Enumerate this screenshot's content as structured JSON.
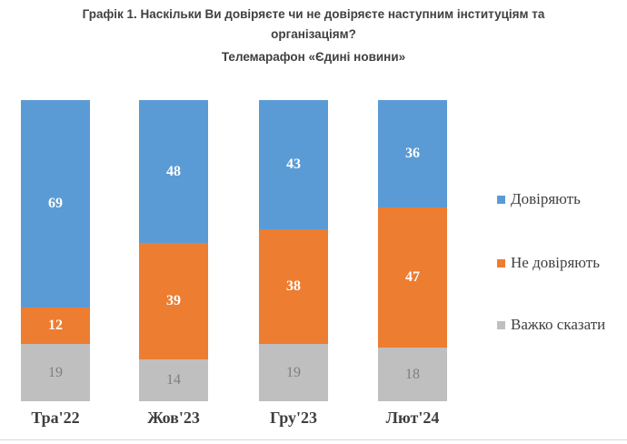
{
  "title": {
    "line1": "Графік 1. Наскільки Ви довіряєте чи не довіряєте наступним інституціям та",
    "line2": "організаціям?",
    "subtitle": "Телемарафон «Єдині новини»"
  },
  "colors": {
    "trust": "#5B9BD5",
    "distrust": "#ED7D31",
    "hard_to_say": "#BFBFBF",
    "title_text": "#404040",
    "category_text": "#3F3F3F",
    "gray_value_text": "#7F7F7F",
    "white_value_text": "#FFFFFF",
    "divider": "#D9D9D9"
  },
  "chart_data": {
    "type": "bar",
    "subtype": "stacked-column-100",
    "title": "Графік 1. Наскільки Ви довіряєте чи не довіряєте наступним інституціям та організаціям?",
    "subtitle": "Телемарафон «Єдині новини»",
    "categories": [
      "Тра'22",
      "Жов'23",
      "Гру'23",
      "Лют'24"
    ],
    "series": [
      {
        "name": "Довіряють",
        "color": "#5B9BD5",
        "values": [
          69,
          48,
          43,
          36
        ]
      },
      {
        "name": "Не довіряють",
        "color": "#ED7D31",
        "values": [
          12,
          39,
          38,
          47
        ]
      },
      {
        "name": "Важко сказати",
        "color": "#BFBFBF",
        "values": [
          19,
          14,
          19,
          18
        ]
      }
    ],
    "stack_order_top_to_bottom": [
      "Довіряють",
      "Не довіряють",
      "Важко сказати"
    ],
    "ylim": [
      0,
      100
    ],
    "grid": false,
    "axis_lines": false,
    "data_labels": true,
    "legend_position": "right"
  }
}
